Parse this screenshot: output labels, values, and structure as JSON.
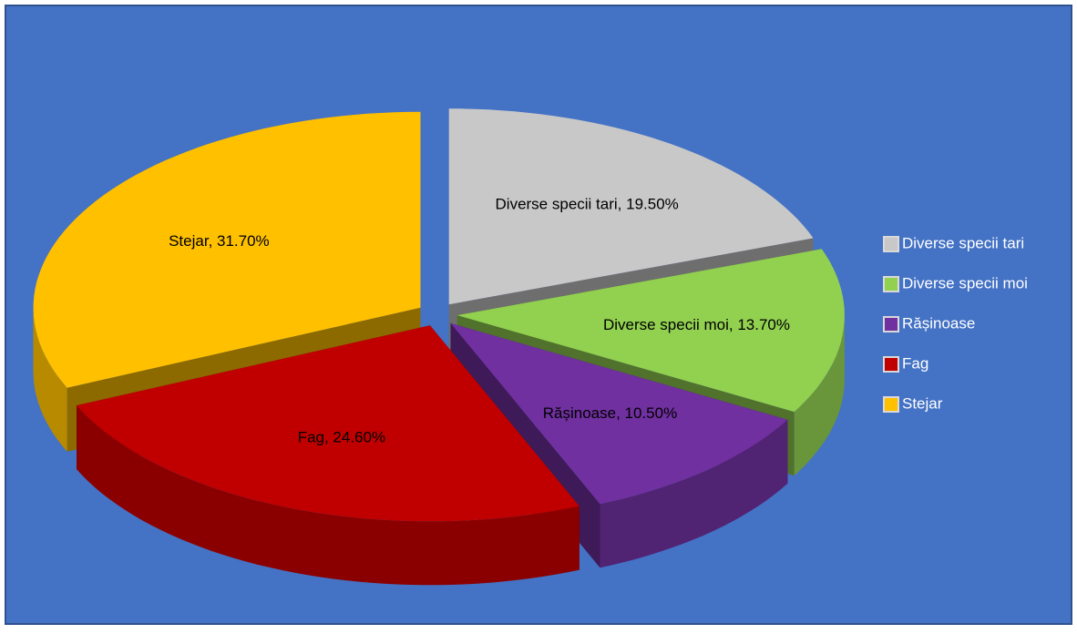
{
  "chart_data": {
    "type": "pie3d",
    "categories": [
      "Diverse specii tari",
      "Diverse specii moi",
      "Rășinoase",
      "Fag",
      "Stejar"
    ],
    "values": [
      19.5,
      13.7,
      10.5,
      24.6,
      31.7
    ],
    "value_labels": [
      "Diverse specii tari, 19.50%",
      "Diverse specii moi, 13.70%",
      "Rășinoase, 10.50%",
      "Fag, 24.60%",
      "Stejar, 31.70%"
    ],
    "colors": [
      "#c8c8c8",
      "#92d050",
      "#7030a0",
      "#c00000",
      "#ffc000"
    ],
    "legend": "right"
  }
}
